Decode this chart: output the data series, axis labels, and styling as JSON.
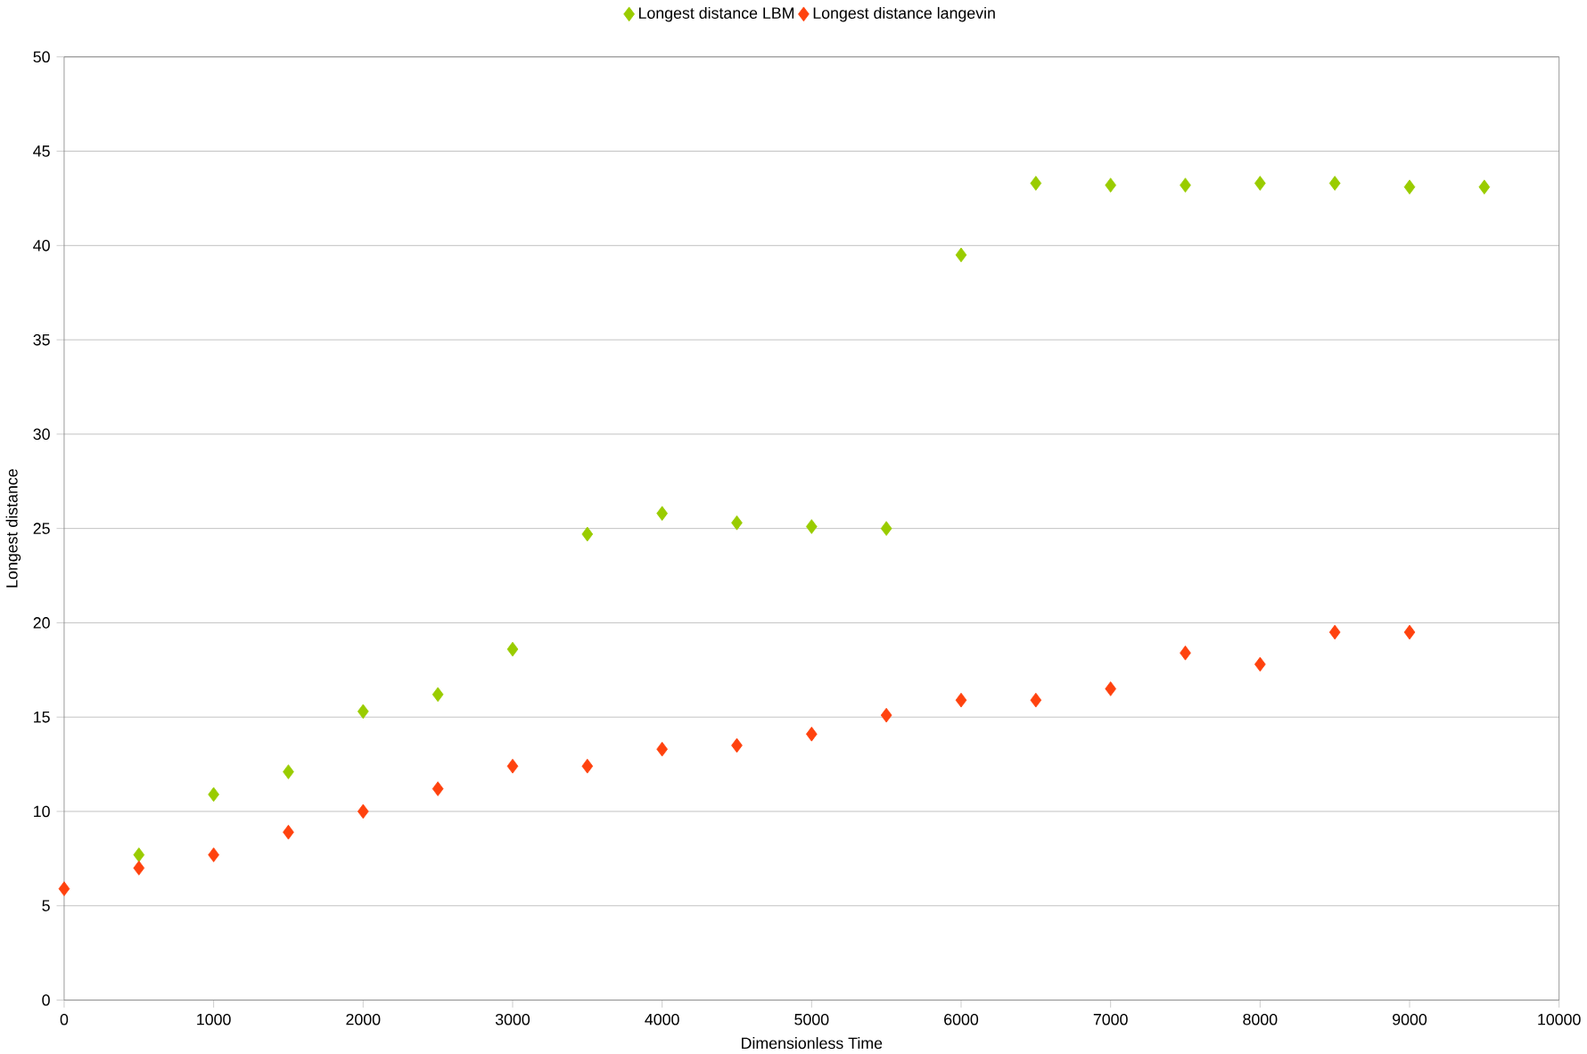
{
  "chart_data": {
    "type": "scatter",
    "xlabel": "Dimensionless Time",
    "ylabel": "Longest distance",
    "xlim": [
      0,
      10000
    ],
    "xticks": [
      0,
      1000,
      2000,
      3000,
      4000,
      5000,
      6000,
      7000,
      8000,
      9000,
      10000
    ],
    "ylim": [
      0,
      50
    ],
    "yticks": [
      0,
      5,
      10,
      15,
      20,
      25,
      30,
      35,
      40,
      45,
      50
    ],
    "grid": "y",
    "legend": "top",
    "marker": "diamond",
    "series": [
      {
        "name": "Longest distance LBM",
        "color": "#99cc00",
        "x": [
          500,
          1000,
          1500,
          2000,
          2500,
          3000,
          3500,
          4000,
          4500,
          5000,
          5500,
          6000,
          6500,
          7000,
          7500,
          8000,
          8500,
          9000,
          9500
        ],
        "values": [
          7.7,
          10.9,
          12.1,
          15.3,
          16.2,
          18.6,
          24.7,
          25.8,
          25.3,
          25.1,
          25.0,
          39.5,
          43.3,
          43.2,
          43.2,
          43.3,
          43.3,
          43.1,
          43.1
        ]
      },
      {
        "name": "Longest distance langevin",
        "color": "#ff420e",
        "x": [
          0,
          500,
          1000,
          1500,
          2000,
          2500,
          3000,
          3500,
          4000,
          4500,
          5000,
          5500,
          6000,
          6500,
          7000,
          7500,
          8000,
          8500,
          9000
        ],
        "values": [
          5.9,
          7.0,
          7.7,
          8.9,
          10.0,
          11.2,
          12.4,
          12.4,
          13.3,
          13.5,
          14.1,
          15.1,
          15.9,
          15.9,
          16.5,
          18.4,
          17.8,
          19.5,
          19.5
        ]
      }
    ]
  }
}
